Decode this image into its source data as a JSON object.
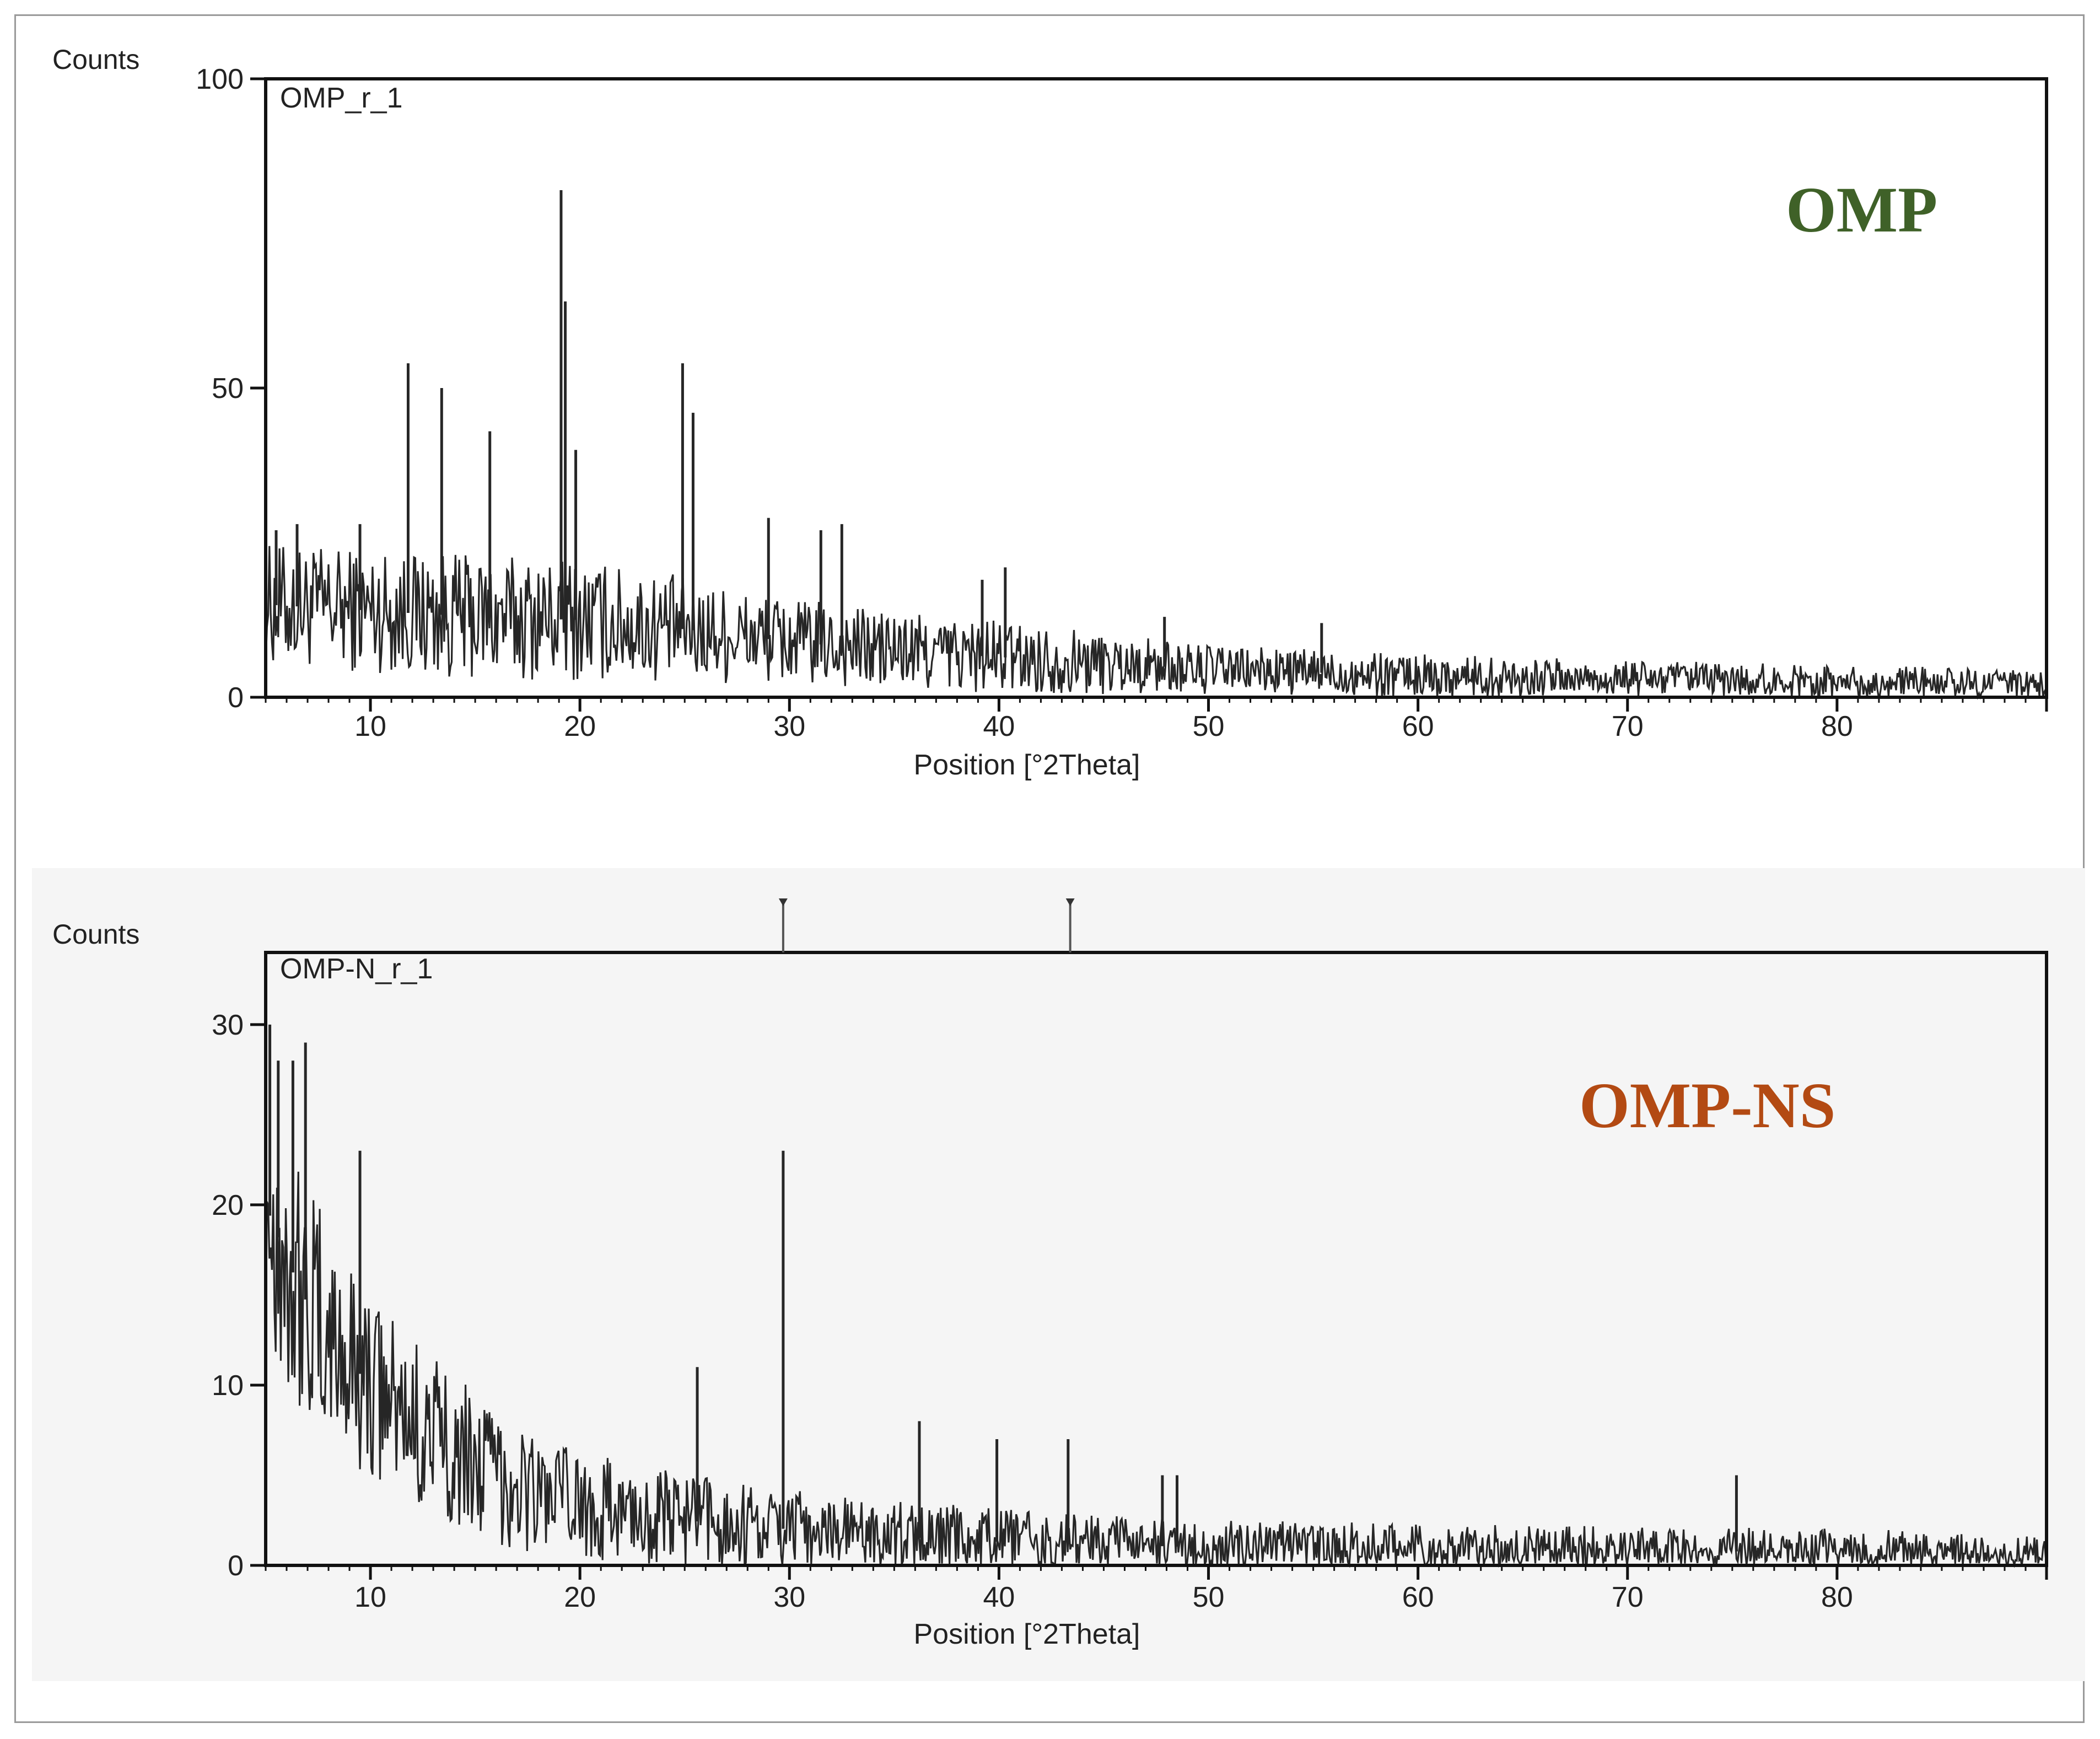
{
  "chart_data": [
    {
      "type": "line",
      "sample_id": "OMP_r_1",
      "annotation": "OMP",
      "annotation_color": "#3f6128",
      "ylabel": "Counts",
      "xlabel": "Position [°2Theta]",
      "xlim": [
        5,
        90
      ],
      "ylim": [
        0,
        100
      ],
      "x_ticks": [
        10,
        20,
        30,
        40,
        50,
        60,
        70,
        80
      ],
      "y_ticks": [
        0,
        50,
        100
      ],
      "grid": false,
      "baseline": [
        [
          5,
          15
        ],
        [
          10,
          14
        ],
        [
          15,
          13
        ],
        [
          20,
          12.5
        ],
        [
          25,
          11
        ],
        [
          30,
          9
        ],
        [
          35,
          7.5
        ],
        [
          40,
          6.5
        ],
        [
          45,
          5.5
        ],
        [
          50,
          4.5
        ],
        [
          60,
          3.5
        ],
        [
          70,
          3
        ],
        [
          80,
          2.5
        ],
        [
          90,
          2
        ]
      ],
      "noise": [
        [
          5,
          10
        ],
        [
          20,
          10
        ],
        [
          30,
          7
        ],
        [
          40,
          6
        ],
        [
          50,
          4
        ],
        [
          70,
          3
        ],
        [
          90,
          2.5
        ]
      ],
      "peaks": [
        {
          "x": 5.5,
          "y": 27
        },
        {
          "x": 6.5,
          "y": 28
        },
        {
          "x": 9.5,
          "y": 28
        },
        {
          "x": 11.8,
          "y": 54
        },
        {
          "x": 13.4,
          "y": 50
        },
        {
          "x": 15.7,
          "y": 43
        },
        {
          "x": 19.1,
          "y": 82
        },
        {
          "x": 19.3,
          "y": 64
        },
        {
          "x": 19.8,
          "y": 40
        },
        {
          "x": 24.9,
          "y": 54
        },
        {
          "x": 25.4,
          "y": 46
        },
        {
          "x": 29.0,
          "y": 29
        },
        {
          "x": 31.5,
          "y": 27
        },
        {
          "x": 32.5,
          "y": 28
        },
        {
          "x": 39.2,
          "y": 19
        },
        {
          "x": 40.3,
          "y": 21
        },
        {
          "x": 47.9,
          "y": 13
        },
        {
          "x": 55.4,
          "y": 12
        }
      ]
    },
    {
      "type": "line",
      "sample_id": "OMP-N_r_1",
      "annotation": "OMP-NS",
      "annotation_color": "#b34a13",
      "ylabel": "Counts",
      "xlabel": "Position [°2Theta]",
      "xlim": [
        5,
        90
      ],
      "ylim": [
        0,
        34
      ],
      "x_ticks": [
        10,
        20,
        30,
        40,
        50,
        60,
        70,
        80
      ],
      "y_ticks": [
        0,
        10,
        20,
        30
      ],
      "grid": false,
      "reference_markers": [
        29.7,
        43.4
      ],
      "baseline": [
        [
          5,
          20
        ],
        [
          6,
          17
        ],
        [
          7,
          14.5
        ],
        [
          8,
          12.5
        ],
        [
          10,
          10
        ],
        [
          12,
          8
        ],
        [
          14,
          6.5
        ],
        [
          16,
          5
        ],
        [
          18,
          4
        ],
        [
          20,
          3.3
        ],
        [
          25,
          2.5
        ],
        [
          30,
          2
        ],
        [
          35,
          1.6
        ],
        [
          40,
          1.3
        ],
        [
          50,
          1
        ],
        [
          60,
          0.9
        ],
        [
          70,
          0.8
        ],
        [
          90,
          0.7
        ]
      ],
      "noise": [
        [
          5,
          8
        ],
        [
          10,
          5
        ],
        [
          20,
          3
        ],
        [
          30,
          2.2
        ],
        [
          50,
          1.5
        ],
        [
          90,
          1.2
        ]
      ],
      "peaks": [
        {
          "x": 5.2,
          "y": 30
        },
        {
          "x": 5.6,
          "y": 28
        },
        {
          "x": 6.3,
          "y": 28
        },
        {
          "x": 6.9,
          "y": 29
        },
        {
          "x": 9.5,
          "y": 23
        },
        {
          "x": 25.6,
          "y": 11
        },
        {
          "x": 29.7,
          "y": 23
        },
        {
          "x": 36.2,
          "y": 8
        },
        {
          "x": 39.9,
          "y": 7
        },
        {
          "x": 43.3,
          "y": 7
        },
        {
          "x": 47.8,
          "y": 5
        },
        {
          "x": 48.5,
          "y": 5
        },
        {
          "x": 75.2,
          "y": 5
        }
      ]
    }
  ]
}
